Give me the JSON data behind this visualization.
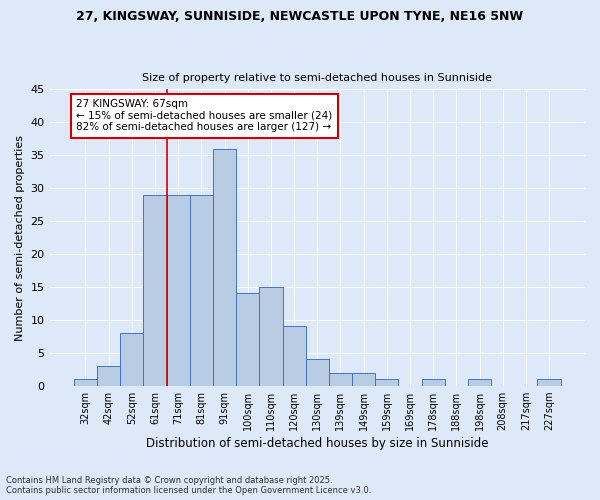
{
  "title1": "27, KINGSWAY, SUNNISIDE, NEWCASTLE UPON TYNE, NE16 5NW",
  "title2": "Size of property relative to semi-detached houses in Sunniside",
  "xlabel": "Distribution of semi-detached houses by size in Sunniside",
  "ylabel": "Number of semi-detached properties",
  "categories": [
    "32sqm",
    "42sqm",
    "52sqm",
    "61sqm",
    "71sqm",
    "81sqm",
    "91sqm",
    "100sqm",
    "110sqm",
    "120sqm",
    "130sqm",
    "139sqm",
    "149sqm",
    "159sqm",
    "169sqm",
    "178sqm",
    "188sqm",
    "198sqm",
    "208sqm",
    "217sqm",
    "227sqm"
  ],
  "values": [
    1,
    3,
    8,
    29,
    29,
    29,
    36,
    14,
    15,
    9,
    4,
    2,
    2,
    1,
    0,
    1,
    0,
    1,
    0,
    0,
    1
  ],
  "bar_color": "#b8cce4",
  "bar_edge_color": "#4472c4",
  "vline_x_idx": 3,
  "vline_color": "#cc0000",
  "annotation_text": "27 KINGSWAY: 67sqm\n← 15% of semi-detached houses are smaller (24)\n82% of semi-detached houses are larger (127) →",
  "annotation_box_color": "#ffffff",
  "annotation_box_edge_color": "#cc0000",
  "ylim": [
    0,
    45
  ],
  "yticks": [
    0,
    5,
    10,
    15,
    20,
    25,
    30,
    35,
    40,
    45
  ],
  "background_color": "#dde8f8",
  "grid_color": "#ffffff",
  "footer1": "Contains HM Land Registry data © Crown copyright and database right 2025.",
  "footer2": "Contains public sector information licensed under the Open Government Licence v3.0."
}
